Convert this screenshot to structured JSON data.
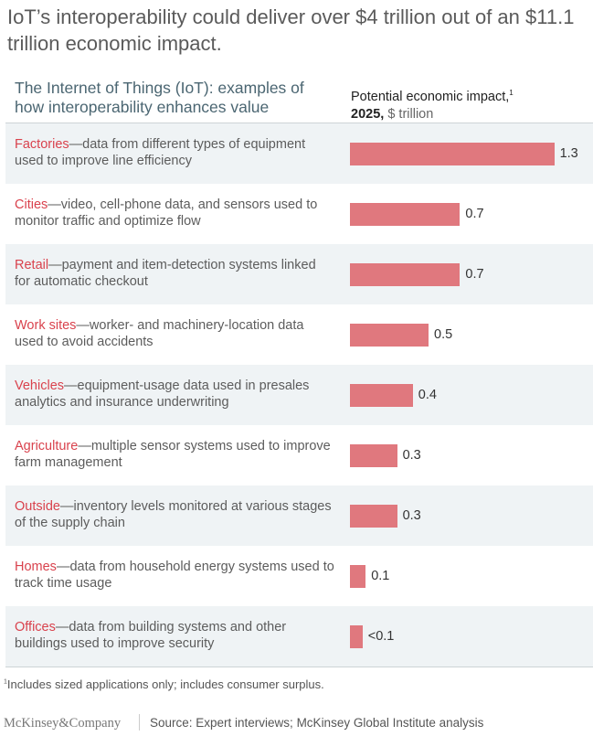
{
  "title": "IoT’s interoperability could deliver over $4 trillion out of an $11.1 trillion economic impact.",
  "chart_data": {
    "type": "bar",
    "orientation": "horizontal",
    "left_header": "The Internet of Things (IoT): examples of how interoperability enhances value",
    "value_header": "Potential economic impact,",
    "value_header_sup": "1",
    "value_header_year": "2025,",
    "value_header_unit": "$ trillion",
    "bar_color": "#e0787e",
    "category_color": "#d9424d",
    "categories": [
      {
        "name": "Factories",
        "description": "—data from different types of equipment used to improve line efficiency",
        "value": 1.3,
        "label": "1.3"
      },
      {
        "name": "Cities",
        "description": "—video, cell-phone data, and sensors used to monitor traffic and optimize flow",
        "value": 0.7,
        "label": "0.7"
      },
      {
        "name": "Retail",
        "description": "—payment and item-detection systems linked for automatic checkout",
        "value": 0.7,
        "label": "0.7"
      },
      {
        "name": "Work sites",
        "description": "—worker- and machinery-location data used to avoid accidents",
        "value": 0.5,
        "label": "0.5"
      },
      {
        "name": "Vehicles",
        "description": "—equipment-usage data used in presales analytics and insurance underwriting",
        "value": 0.4,
        "label": "0.4"
      },
      {
        "name": "Agriculture",
        "description": "—multiple sensor systems used to improve farm management",
        "value": 0.3,
        "label": "0.3"
      },
      {
        "name": "Outside",
        "description": "—inventory levels monitored at various stages of the supply chain",
        "value": 0.3,
        "label": "0.3"
      },
      {
        "name": "Homes",
        "description": "—data from household energy systems used to track time usage",
        "value": 0.1,
        "label": "0.1"
      },
      {
        "name": "Offices",
        "description": "—data from building systems and other buildings used to improve security",
        "value": 0.08,
        "label": "<0.1"
      }
    ]
  },
  "footnote_mark": "1",
  "footnote": "Includes sized applications only; includes consumer surplus.",
  "logo": "McKinsey&Company",
  "source": "Source: Expert interviews; McKinsey Global Institute analysis"
}
